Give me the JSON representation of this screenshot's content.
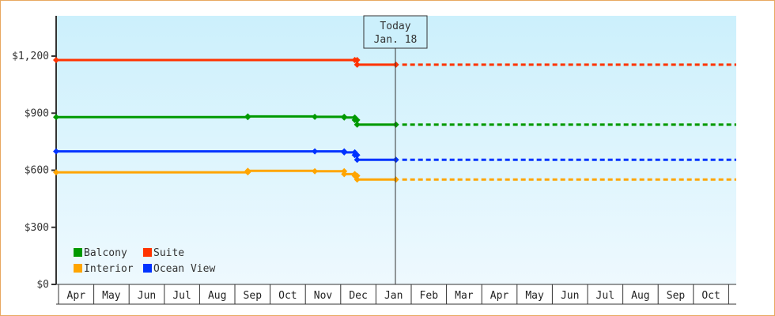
{
  "chart_data": {
    "type": "line",
    "title": "",
    "xlabel": "",
    "ylabel": "",
    "ylim": [
      0,
      1440
    ],
    "yticks": [
      0,
      300,
      600,
      900,
      1200
    ],
    "ytick_labels": [
      "$0",
      "$300",
      "$600",
      "$900",
      "$1,200"
    ],
    "x_tick_labels": [
      "Apr",
      "May",
      "Jun",
      "Jul",
      "Aug",
      "Sep",
      "Oct",
      "Nov",
      "Dec",
      "Jan",
      "Feb",
      "Mar",
      "Apr",
      "May",
      "Jun",
      "Jul",
      "Aug",
      "Sep",
      "Oct"
    ],
    "today_marker": {
      "line1": "Today",
      "line2": "Jan. 18"
    },
    "legend": {
      "position": "lower-left",
      "entries": [
        "Balcony",
        "Suite",
        "Interior",
        "Ocean View"
      ]
    },
    "grid": false,
    "step": true,
    "projection_style": "dashed after today",
    "series": [
      {
        "name": "Suite",
        "color": "#ff3300",
        "points": [
          [
            "Apr 1",
            1179
          ],
          [
            "Dec 13",
            1179
          ],
          [
            "Dec 15",
            1155
          ],
          [
            "Jan 18",
            1155
          ]
        ],
        "projected": 1155
      },
      {
        "name": "Balcony",
        "color": "#009900",
        "points": [
          [
            "Apr 1",
            879
          ],
          [
            "Sep 12",
            883
          ],
          [
            "Nov 9",
            881
          ],
          [
            "Dec 4",
            877
          ],
          [
            "Dec 13",
            864
          ],
          [
            "Dec 15",
            840
          ],
          [
            "Jan 18",
            840
          ]
        ],
        "projected": 840
      },
      {
        "name": "Ocean View",
        "color": "#0033ff",
        "points": [
          [
            "Apr 1",
            699
          ],
          [
            "Nov 9",
            699
          ],
          [
            "Dec 4",
            694
          ],
          [
            "Dec 13",
            680
          ],
          [
            "Dec 15",
            655
          ],
          [
            "Jan 18",
            655
          ]
        ],
        "projected": 655
      },
      {
        "name": "Interior",
        "color": "#ffa500",
        "points": [
          [
            "Apr 1",
            589
          ],
          [
            "Sep 12",
            597
          ],
          [
            "Nov 9",
            595
          ],
          [
            "Dec 4",
            580
          ],
          [
            "Dec 13",
            571
          ],
          [
            "Dec 15",
            551
          ],
          [
            "Jan 18",
            551
          ]
        ],
        "projected": 551
      }
    ]
  }
}
